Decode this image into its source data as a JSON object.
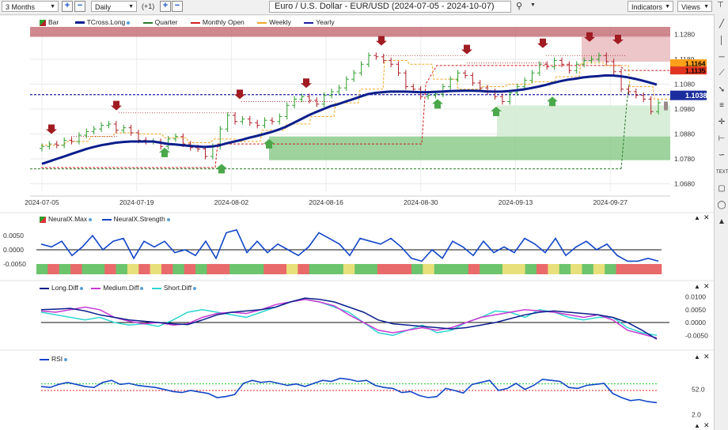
{
  "toolbar": {
    "range": "3 Months",
    "interval": "Daily",
    "offset": "(+1)",
    "title": "Euro / U.S. Dollar - EUR/USD (2024-07-05 - 2024-10-07)",
    "indicators_label": "Indicators",
    "views_label": "Views"
  },
  "legend": {
    "bar": "Bar",
    "tcross": "TCross.Long",
    "quarter": "Quarter",
    "monthly_open": "Monthly Open",
    "weekly": "Weekly",
    "yearly": "Yearly"
  },
  "price_axis": {
    "ticks": [
      "1.1280",
      "1.1180",
      "1.1080",
      "1.0980",
      "1.0880",
      "1.0780",
      "1.0680"
    ],
    "label_a": "1.1164",
    "label_b": "1.1135",
    "label_c": "1.1038"
  },
  "x_axis": {
    "ticks": [
      "2024-07-05",
      "2024-07-19",
      "2024-08-02",
      "2024-08-16",
      "2024-08-30",
      "2024-09-13",
      "2024-09-27"
    ]
  },
  "neural": {
    "legend_max": "NeuralX.Max",
    "legend_strength": "NeuralX.Strength",
    "ticks": [
      "0.0050",
      "0.0000",
      "-0.0050"
    ]
  },
  "diff": {
    "legend_long": "Long.Diff",
    "legend_medium": "Medium.Diff",
    "legend_short": "Short.Diff",
    "ticks": [
      "0.0100",
      "0.0050",
      "0.0000",
      "-0.0050"
    ]
  },
  "rsi": {
    "legend": "RSI",
    "ticks": [
      "52.0",
      "2.0"
    ]
  },
  "colors": {
    "up": "#2e9e2e",
    "down": "#b0202a",
    "tcross": "#0b1e8c",
    "yearly": "#1c1ca8",
    "monthly": "#d11f1f",
    "weekly": "#f5a623",
    "quarter": "#2c7a2c"
  },
  "chart_data": [
    {
      "type": "candlestick",
      "title": "Euro / U.S. Dollar - EUR/USD (2024-07-05 - 2024-10-07)",
      "x_ticks": [
        "2024-07-05",
        "2024-07-19",
        "2024-08-02",
        "2024-08-16",
        "2024-08-30",
        "2024-09-13",
        "2024-09-27"
      ],
      "ylim": [
        1.065,
        1.131
      ],
      "close": [
        1.083,
        1.084,
        1.0835,
        1.0855,
        1.085,
        1.0875,
        1.089,
        1.09,
        1.0915,
        1.092,
        1.0895,
        1.0905,
        1.0885,
        1.0855,
        1.085,
        1.085,
        1.083,
        1.086,
        1.087,
        1.084,
        1.0825,
        1.082,
        1.079,
        1.083,
        1.09,
        1.0955,
        1.093,
        1.094,
        1.0925,
        1.0915,
        1.0935,
        1.093,
        1.095,
        1.0995,
        1.102,
        1.103,
        1.1015,
        1.1,
        1.1035,
        1.105,
        1.1065,
        1.11,
        1.1125,
        1.116,
        1.1195,
        1.119,
        1.1175,
        1.116,
        1.1125,
        1.107,
        1.106,
        1.103,
        1.1035,
        1.104,
        1.107,
        1.11,
        1.1125,
        1.1115,
        1.1085,
        1.1065,
        1.105,
        1.103,
        1.101,
        1.1045,
        1.107,
        1.1095,
        1.1125,
        1.116,
        1.115,
        1.1175,
        1.116,
        1.1135,
        1.116,
        1.1175,
        1.118,
        1.1195,
        1.117,
        1.113,
        1.106,
        1.105,
        1.1035,
        1.102,
        1.097,
        1.1005
      ],
      "series": [
        {
          "name": "TCross.Long",
          "values": [
            1.076,
            1.077,
            1.078,
            1.079,
            1.08,
            1.081,
            1.082,
            1.0828,
            1.0835,
            1.084,
            1.0845,
            1.0848,
            1.085,
            1.085,
            1.085,
            1.085,
            1.0845,
            1.084,
            1.0838,
            1.0835,
            1.0832,
            1.083,
            1.0828,
            1.083,
            1.0835,
            1.0843,
            1.085,
            1.0857,
            1.0865,
            1.0872,
            1.088,
            1.0888,
            1.0898,
            1.091,
            1.0925,
            1.094,
            1.0955,
            1.0968,
            1.098,
            1.0992,
            1.1,
            1.101,
            1.102,
            1.103,
            1.104,
            1.1045,
            1.1048,
            1.105,
            1.105,
            1.105,
            1.1049,
            1.1048,
            1.1048,
            1.1049,
            1.105,
            1.1052,
            1.1053,
            1.1054,
            1.1054,
            1.1053,
            1.1051,
            1.105,
            1.105,
            1.1052,
            1.1055,
            1.1059,
            1.1064,
            1.107,
            1.1077,
            1.1085,
            1.1092,
            1.1098,
            1.1102,
            1.1107,
            1.111,
            1.1112,
            1.1115,
            1.1115,
            1.1112,
            1.1108,
            1.1102,
            1.1095,
            1.1087,
            1.1078
          ]
        },
        {
          "name": "Yearly",
          "values": [
            1.1038
          ]
        },
        {
          "name": "Monthly Open",
          "values": [
            1.074,
            1.084,
            1.116,
            1.1135
          ]
        },
        {
          "name": "Quarter",
          "values": [
            1.074
          ]
        }
      ]
    },
    {
      "type": "line",
      "title": "NeuralX",
      "ylim": [
        -0.009,
        0.009
      ],
      "series": [
        {
          "name": "NeuralX.Strength",
          "values": [
            0.002,
            0.001,
            0.003,
            -0.002,
            0.001,
            0.005,
            0.0,
            0.003,
            0.004,
            -0.003,
            0.003,
            0.001,
            0.003,
            -0.001,
            0.0,
            -0.002,
            0.003,
            -0.003,
            0.006,
            0.007,
            -0.001,
            0.003,
            -0.001,
            0.002,
            0.0,
            -0.002,
            0.001,
            0.006,
            0.004,
            0.002,
            -0.002,
            0.004,
            0.003,
            0.002,
            0.004,
            0.001,
            -0.003,
            -0.004,
            0.0,
            -0.003,
            0.003,
            0.001,
            -0.002,
            0.003,
            -0.001,
            0.001,
            -0.001,
            0.004,
            0.002,
            -0.001,
            0.004,
            -0.002,
            0.001,
            0.003,
            0.0,
            0.002,
            -0.002,
            -0.004,
            -0.004,
            -0.003,
            -0.004
          ]
        }
      ]
    },
    {
      "type": "line",
      "title": "Diff",
      "ylim": [
        -0.0075,
        0.0105
      ],
      "series": [
        {
          "name": "Long.Diff",
          "values": [
            0.005,
            0.0052,
            0.0055,
            0.0045,
            0.003,
            0.002,
            0.001,
            0.0005,
            0.0,
            -0.0005,
            -0.0008,
            0.001,
            0.003,
            0.004,
            0.0045,
            0.005,
            0.006,
            0.008,
            0.0095,
            0.009,
            0.008,
            0.006,
            0.004,
            0.001,
            -0.0005,
            -0.001,
            -0.0015,
            -0.002,
            -0.0025,
            -0.002,
            -0.001,
            0.0,
            0.0015,
            0.003,
            0.004,
            0.0045,
            0.004,
            0.0035,
            0.003,
            0.002,
            0.0,
            -0.003,
            -0.0065
          ]
        },
        {
          "name": "Medium.Diff",
          "values": [
            0.0045,
            0.004,
            0.005,
            0.006,
            0.005,
            0.002,
            0.0005,
            -0.0005,
            0.0,
            -0.001,
            -0.0005,
            0.002,
            0.0035,
            0.004,
            0.0035,
            0.005,
            0.007,
            0.008,
            0.009,
            0.008,
            0.0065,
            0.003,
            0.0,
            -0.003,
            -0.004,
            -0.003,
            -0.002,
            -0.003,
            -0.002,
            0.0,
            0.002,
            0.003,
            0.004,
            0.005,
            0.0045,
            0.004,
            0.003,
            0.002,
            0.003,
            0.001,
            -0.003,
            -0.0045,
            -0.006
          ]
        },
        {
          "name": "Short.Diff",
          "values": [
            0.004,
            0.003,
            0.002,
            0.001,
            0.002,
            0.0,
            -0.001,
            -0.0005,
            -0.0015,
            0.001,
            0.004,
            0.005,
            0.004,
            0.003,
            0.002,
            0.004,
            0.006,
            0.008,
            0.009,
            0.008,
            0.006,
            0.004,
            0.0,
            -0.004,
            -0.005,
            -0.003,
            -0.001,
            -0.004,
            -0.003,
            0.0,
            0.002,
            0.0045,
            0.004,
            0.002,
            0.005,
            0.004,
            0.002,
            0.001,
            0.002,
            0.002,
            -0.002,
            -0.004,
            -0.005
          ]
        }
      ]
    },
    {
      "type": "line",
      "title": "RSI",
      "ylim": [
        0,
        100
      ],
      "series": [
        {
          "name": "RSI",
          "values": [
            58,
            56,
            62,
            66,
            62,
            58,
            56,
            66,
            70,
            62,
            64,
            60,
            58,
            56,
            52,
            48,
            46,
            50,
            47,
            44,
            36,
            38,
            42,
            64,
            70,
            66,
            68,
            64,
            60,
            63,
            58,
            64,
            70,
            68,
            74,
            72,
            68,
            70,
            60,
            56,
            54,
            46,
            48,
            40,
            36,
            38,
            54,
            50,
            45,
            62,
            66,
            70,
            50,
            54,
            64,
            52,
            60,
            72,
            70,
            68,
            56,
            54,
            60,
            62,
            64,
            44,
            36,
            30,
            32,
            28,
            26
          ]
        }
      ]
    }
  ]
}
